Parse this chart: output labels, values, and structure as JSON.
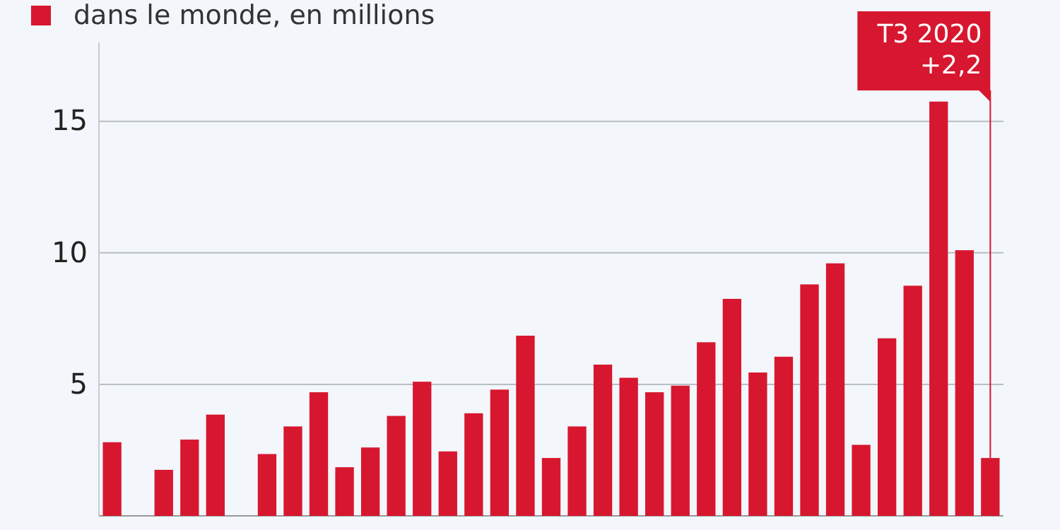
{
  "chart_data": {
    "type": "bar",
    "categories": [
      null,
      null,
      null,
      null,
      null,
      null,
      null,
      null,
      null,
      null,
      null,
      null,
      null,
      null,
      null,
      null,
      null,
      null,
      null,
      null,
      null,
      null,
      null,
      null,
      null,
      null,
      null,
      null,
      null,
      null,
      null,
      null,
      null,
      null,
      null
    ],
    "series": [
      {
        "name": "dans le monde, en millions",
        "color": "#d7172f",
        "values": [
          2.8,
          null,
          1.75,
          2.9,
          3.85,
          null,
          2.35,
          3.4,
          4.7,
          1.85,
          2.6,
          3.8,
          5.1,
          2.45,
          3.9,
          4.8,
          6.85,
          2.2,
          3.4,
          5.75,
          5.25,
          4.7,
          4.95,
          6.6,
          8.25,
          5.45,
          6.05,
          8.8,
          9.6,
          2.7,
          6.75,
          8.75,
          15.75,
          10.1,
          2.2
        ]
      }
    ],
    "ylim": [
      0,
      18
    ],
    "yticks": [
      5,
      10,
      15
    ],
    "grid": "y",
    "legend": "top left",
    "annotations": [
      "T3 2020\n+2,2"
    ]
  }
}
